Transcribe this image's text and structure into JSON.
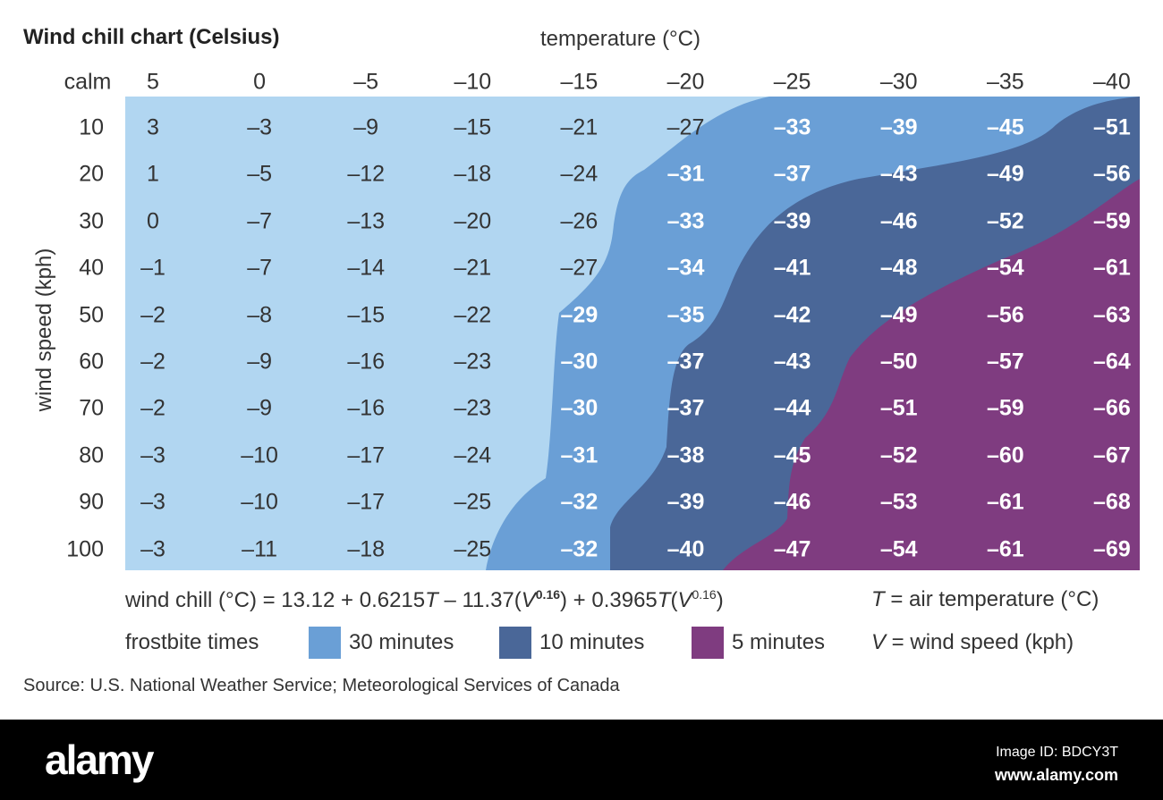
{
  "chart_data": {
    "type": "table",
    "title": "Wind chill chart (Celsius)",
    "xlabel": "temperature (°C)",
    "ylabel": "wind speed (kph)",
    "corner_label": "calm",
    "temperatures": [
      "5",
      "0",
      "–5",
      "–10",
      "–15",
      "–20",
      "–25",
      "–30",
      "–35",
      "–40"
    ],
    "wind_speeds": [
      "10",
      "20",
      "30",
      "40",
      "50",
      "60",
      "70",
      "80",
      "90",
      "100"
    ],
    "values": [
      [
        3,
        -3,
        -9,
        -15,
        -21,
        -27,
        -33,
        -39,
        -45,
        -51
      ],
      [
        1,
        -5,
        -12,
        -18,
        -24,
        -31,
        -37,
        -43,
        -49,
        -56
      ],
      [
        0,
        -7,
        -13,
        -20,
        -26,
        -33,
        -39,
        -46,
        -52,
        -59
      ],
      [
        -1,
        -7,
        -14,
        -21,
        -27,
        -34,
        -41,
        -48,
        -54,
        -61
      ],
      [
        -2,
        -8,
        -15,
        -22,
        -29,
        -35,
        -42,
        -49,
        -56,
        -63
      ],
      [
        -2,
        -9,
        -16,
        -23,
        -30,
        -37,
        -43,
        -50,
        -57,
        -64
      ],
      [
        -2,
        -9,
        -16,
        -23,
        -30,
        -37,
        -44,
        -51,
        -59,
        -66
      ],
      [
        -3,
        -10,
        -17,
        -24,
        -31,
        -38,
        -45,
        -52,
        -60,
        -67
      ],
      [
        -3,
        -10,
        -17,
        -25,
        -32,
        -39,
        -46,
        -53,
        -61,
        -68
      ],
      [
        -3,
        -11,
        -18,
        -25,
        -32,
        -40,
        -47,
        -54,
        -61,
        -69
      ]
    ],
    "colors": {
      "base": "#b1d6f1",
      "30 minutes": "#6a9fd6",
      "10 minutes": "#4a6798",
      "5 minutes": "#7f3c80"
    }
  },
  "formula": {
    "prefix": "wind chill (°C) = 13.12 + 0.6215",
    "T1": "T",
    "mid": " – 11.37(",
    "V1": "V",
    "exp1": "0.16",
    "mid2": ") + 0.3965",
    "T2": "T",
    "mid3": "(",
    "V2": "V",
    "exp2": "0.16",
    "end": ")"
  },
  "legend": {
    "label": "frostbite times",
    "items": [
      "30 minutes",
      "10 minutes",
      "5 minutes"
    ]
  },
  "definitions": {
    "T_sym": "T",
    "T_def": " = air temperature (°C)",
    "V_sym": "V",
    "V_def": " = wind speed (kph)"
  },
  "source": "Source: U.S. National Weather Service; Meteorological Services of Canada",
  "footer": {
    "logo": "alamy",
    "image_id": "Image ID: BDCY3T",
    "site": "www.alamy.com"
  }
}
